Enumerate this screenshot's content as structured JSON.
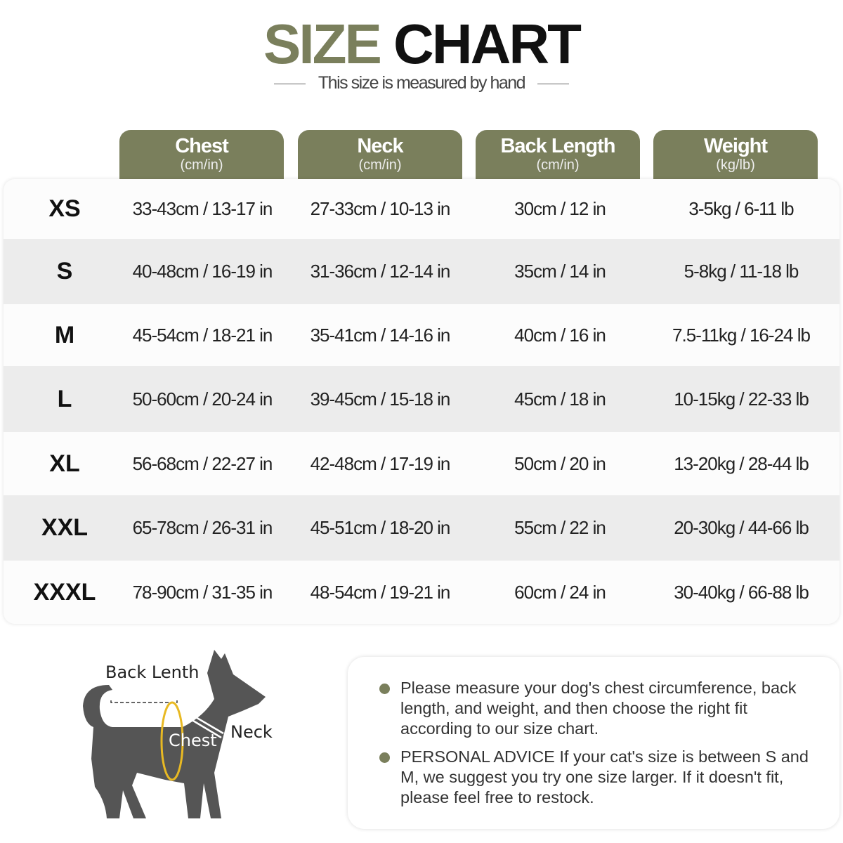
{
  "title": {
    "part1": "SIZE",
    "part2": "CHART",
    "subtitle": "This size is measured by hand"
  },
  "colors": {
    "accent": "#7a7f5c",
    "row_alt": "#ececec",
    "chest_ring": "#e8b923",
    "dog": "#555555"
  },
  "columns": [
    {
      "label": "Chest",
      "unit": "(cm/in)"
    },
    {
      "label": "Neck",
      "unit": "(cm/in)"
    },
    {
      "label": "Back Length",
      "unit": "(cm/in)"
    },
    {
      "label": "Weight",
      "unit": "(kg/lb)"
    }
  ],
  "rows": [
    {
      "size": "XS",
      "chest": "33-43cm / 13-17 in",
      "neck": "27-33cm / 10-13 in",
      "back": "30cm / 12 in",
      "weight": "3-5kg / 6-11 lb"
    },
    {
      "size": "S",
      "chest": "40-48cm / 16-19 in",
      "neck": "31-36cm / 12-14 in",
      "back": "35cm / 14 in",
      "weight": "5-8kg / 11-18 lb"
    },
    {
      "size": "M",
      "chest": "45-54cm / 18-21 in",
      "neck": "35-41cm / 14-16 in",
      "back": "40cm / 16 in",
      "weight": "7.5-11kg / 16-24 lb"
    },
    {
      "size": "L",
      "chest": "50-60cm / 20-24 in",
      "neck": "39-45cm / 15-18 in",
      "back": "45cm / 18 in",
      "weight": "10-15kg / 22-33 lb"
    },
    {
      "size": "XL",
      "chest": "56-68cm / 22-27 in",
      "neck": "42-48cm / 17-19 in",
      "back": "50cm / 20 in",
      "weight": "13-20kg / 28-44 lb"
    },
    {
      "size": "XXL",
      "chest": "65-78cm / 26-31 in",
      "neck": "45-51cm / 18-20 in",
      "back": "55cm / 22 in",
      "weight": "20-30kg / 44-66 lb"
    },
    {
      "size": "XXXL",
      "chest": "78-90cm / 31-35 in",
      "neck": "48-54cm / 19-21 in",
      "back": "60cm / 24 in",
      "weight": "30-40kg / 66-88 lb"
    }
  ],
  "diagram": {
    "back_label": "Back Lenth",
    "chest_label": "Chest",
    "neck_label": "Neck"
  },
  "notes": [
    "Please measure your dog's chest circumference, back length, and weight, and then choose the right fit according to our size chart.",
    "PERSONAL ADVICE If your cat's size is between S and M, we suggest you try one size larger. If it doesn't fit, please feel free to restock."
  ]
}
